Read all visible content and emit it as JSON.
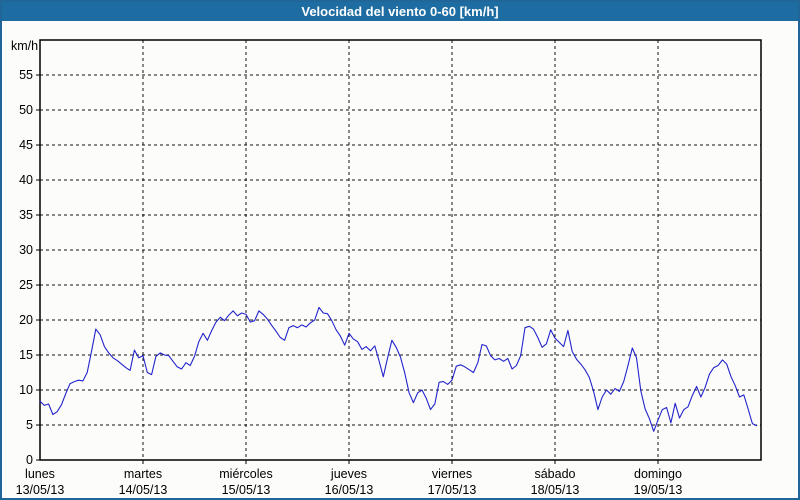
{
  "window": {
    "title": "Velocidad del viento 0-60 [km/h]"
  },
  "colors": {
    "titlebar": "#1d6da3",
    "window_border": "#216698",
    "background": "#fcfdfa",
    "axis": "#000000",
    "line": "#2323cc"
  },
  "chart_data": {
    "type": "line",
    "title": "Velocidad del viento 0-60 [km/h]",
    "ylabel": "km/h",
    "xlabel": "",
    "ylim": [
      0,
      60
    ],
    "y_ticks": [
      0,
      5,
      10,
      15,
      20,
      25,
      30,
      35,
      40,
      45,
      50,
      55
    ],
    "grid": "dashed",
    "legend": "none",
    "x_axis": {
      "days": [
        {
          "name": "lunes",
          "date": "13/05/13"
        },
        {
          "name": "martes",
          "date": "14/05/13"
        },
        {
          "name": "miércoles",
          "date": "15/05/13"
        },
        {
          "name": "jueves",
          "date": "16/05/13"
        },
        {
          "name": "viernes",
          "date": "17/05/13"
        },
        {
          "name": "sábado",
          "date": "18/05/13"
        },
        {
          "name": "domingo",
          "date": "19/05/13"
        }
      ]
    },
    "series": [
      {
        "name": "Velocidad del viento",
        "unit": "km/h",
        "color": "#2323cc",
        "interval_hours": 1,
        "values": [
          8.4,
          7.8,
          8.0,
          6.5,
          6.9,
          7.9,
          9.5,
          10.9,
          11.2,
          11.4,
          11.3,
          12.5,
          15.5,
          18.7,
          17.9,
          16.2,
          15.3,
          14.6,
          14.2,
          13.7,
          13.2,
          12.8,
          15.7,
          14.6,
          14.9,
          12.5,
          12.2,
          14.8,
          15.3,
          15.0,
          14.9,
          14.1,
          13.3,
          13.0,
          13.9,
          13.5,
          14.8,
          16.9,
          18.1,
          17.1,
          18.5,
          19.7,
          20.4,
          19.9,
          20.7,
          21.3,
          20.6,
          21.0,
          20.8,
          19.7,
          19.9,
          21.3,
          20.8,
          20.1,
          19.2,
          18.4,
          17.5,
          17.1,
          18.9,
          19.2,
          18.9,
          19.3,
          19.0,
          19.6,
          20.0,
          21.8,
          21.0,
          20.9,
          19.9,
          18.6,
          17.7,
          16.4,
          18.1,
          17.3,
          16.9,
          15.8,
          16.2,
          15.6,
          16.3,
          14.2,
          11.9,
          14.6,
          17.1,
          16.1,
          14.7,
          12.4,
          9.6,
          8.2,
          9.6,
          10.0,
          8.8,
          7.2,
          8.0,
          11.1,
          11.2,
          10.8,
          11.4,
          13.4,
          13.6,
          13.3,
          12.9,
          12.5,
          13.9,
          16.5,
          16.3,
          14.9,
          14.3,
          14.5,
          14.1,
          14.5,
          13.0,
          13.5,
          14.9,
          18.9,
          19.1,
          18.7,
          17.5,
          16.1,
          16.6,
          18.6,
          17.4,
          16.8,
          16.2,
          18.5,
          15.5,
          14.4,
          13.7,
          12.9,
          11.8,
          9.8,
          7.2,
          9.0,
          10.0,
          9.4,
          10.2,
          9.8,
          11.2,
          13.5,
          16.0,
          14.6,
          9.9,
          7.3,
          5.9,
          4.1,
          5.7,
          7.2,
          7.5,
          5.3,
          8.1,
          6.0,
          7.2,
          7.6,
          9.2,
          10.5,
          9.0,
          10.4,
          12.3,
          13.2,
          13.5,
          14.3,
          13.7,
          11.9,
          10.6,
          9.0,
          9.3,
          7.3,
          5.2,
          4.9
        ]
      }
    ]
  }
}
